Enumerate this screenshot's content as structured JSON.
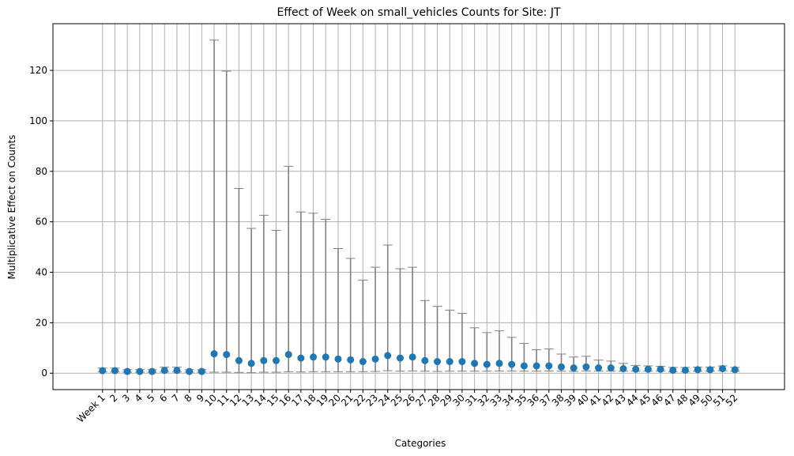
{
  "chart_data": {
    "type": "scatter",
    "title": "Effect of Week on small_vehicles Counts for Site: JT",
    "xlabel": "Categories",
    "ylabel": "Multiplicative Effect on Counts",
    "ylim": [
      -6.5,
      138.5
    ],
    "yticks": [
      0,
      20,
      40,
      60,
      80,
      100,
      120
    ],
    "grid": true,
    "point_color": "#1f77b4",
    "errorbar_color": "#808080",
    "categories": [
      "Week 1",
      "2",
      "3",
      "4",
      "5",
      "6",
      "7",
      "8",
      "9",
      "10",
      "11",
      "12",
      "13",
      "14",
      "15",
      "16",
      "17",
      "18",
      "19",
      "20",
      "21",
      "22",
      "23",
      "24",
      "25",
      "26",
      "27",
      "28",
      "29",
      "30",
      "31",
      "32",
      "33",
      "34",
      "35",
      "36",
      "37",
      "38",
      "39",
      "40",
      "41",
      "42",
      "43",
      "44",
      "45",
      "46",
      "47",
      "48",
      "49",
      "50",
      "51",
      "52"
    ],
    "x": [
      0,
      1,
      2,
      3,
      4,
      5,
      6,
      7,
      8,
      9,
      10,
      11,
      12,
      13,
      14,
      15,
      16,
      17,
      18,
      19,
      20,
      21,
      22,
      23,
      24,
      25,
      26,
      27,
      28,
      29,
      30,
      31,
      32,
      33,
      34,
      35,
      36,
      37,
      38,
      39,
      40,
      41,
      42,
      43,
      44,
      45,
      46,
      47,
      48,
      49,
      50,
      51
    ],
    "series": [
      {
        "values": [
          1.0,
          1.0,
          0.7,
          0.7,
          0.7,
          1.1,
          1.1,
          0.7,
          0.7,
          7.7,
          7.4,
          5.0,
          3.9,
          5.0,
          5.0,
          7.4,
          6.0,
          6.4,
          6.4,
          5.6,
          5.3,
          4.6,
          5.6,
          7.0,
          6.0,
          6.4,
          5.0,
          4.6,
          4.6,
          4.6,
          3.9,
          3.5,
          3.9,
          3.5,
          2.9,
          2.9,
          2.9,
          2.5,
          2.1,
          2.5,
          2.1,
          2.1,
          1.8,
          1.6,
          1.6,
          1.6,
          1.2,
          1.2,
          1.4,
          1.4,
          1.8,
          1.4
        ],
        "lower": [
          0.5,
          0.5,
          0.4,
          0.4,
          0.4,
          0.5,
          0.5,
          0.4,
          0.4,
          0.4,
          0.4,
          0.3,
          0.2,
          0.4,
          0.4,
          0.6,
          0.5,
          0.6,
          0.6,
          0.6,
          0.6,
          0.6,
          0.7,
          1.0,
          0.8,
          0.9,
          0.8,
          0.7,
          0.8,
          0.8,
          0.8,
          0.8,
          0.9,
          0.9,
          0.8,
          0.8,
          0.9,
          0.8,
          0.7,
          0.9,
          0.8,
          0.9,
          0.8,
          0.8,
          0.8,
          0.9,
          0.6,
          0.6,
          0.8,
          0.8,
          1.0,
          0.8
        ],
        "upper": [
          2.0,
          2.0,
          1.4,
          1.4,
          1.4,
          2.4,
          2.4,
          1.4,
          1.4,
          132.0,
          119.7,
          73.2,
          57.4,
          62.6,
          56.6,
          82.0,
          63.9,
          63.4,
          61.0,
          49.4,
          45.5,
          36.9,
          42.0,
          50.8,
          41.4,
          42.0,
          28.8,
          26.5,
          25.0,
          23.7,
          18.0,
          16.1,
          16.8,
          14.2,
          11.8,
          9.3,
          9.6,
          7.6,
          6.4,
          6.7,
          5.2,
          4.8,
          3.9,
          3.1,
          2.9,
          2.7,
          2.3,
          2.3,
          2.4,
          2.4,
          2.9,
          2.3
        ]
      }
    ]
  }
}
